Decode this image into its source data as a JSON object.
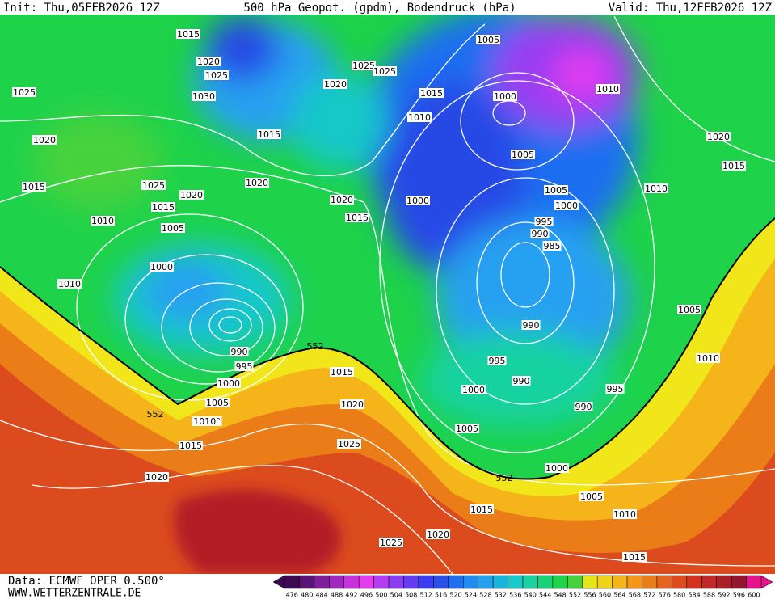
{
  "header": {
    "init": "Init: Thu,05FEB2026 12Z",
    "title": "500 hPa Geopot. (gpdm), Bodendruck (hPa)",
    "valid": "Valid: Thu,12FEB2026 12Z"
  },
  "footer": {
    "source": "Data: ECMWF OPER 0.500°",
    "site": "WWW.WETTERZENTRALE.DE"
  },
  "colorbar": {
    "labels": [
      476,
      480,
      484,
      488,
      492,
      496,
      500,
      504,
      508,
      512,
      516,
      520,
      524,
      528,
      532,
      536,
      540,
      544,
      548,
      552,
      556,
      560,
      564,
      568,
      572,
      576,
      580,
      584,
      588,
      592,
      596,
      600
    ]
  },
  "isobar_labels": [
    "1015",
    "1020",
    "1025",
    "1030",
    "1025",
    "1020",
    "1015",
    "1010",
    "1025",
    "1020",
    "1015",
    "1005",
    "1000",
    "1010",
    "1015",
    "1020",
    "1020",
    "1025",
    "1025",
    "1020",
    "1015",
    "1015",
    "1010",
    "1005",
    "1000",
    "1010",
    "1005",
    "1005",
    "1000",
    "1000",
    "995",
    "990",
    "985",
    "1020",
    "1015",
    "1010",
    "1005",
    "1010",
    "995",
    "990",
    "990",
    "995",
    "990",
    "1000",
    "1005",
    "1000",
    "552",
    "1005",
    "1010",
    "1015",
    "1015",
    "1020",
    "1025",
    "1025",
    "1020",
    "1015",
    "552",
    "990",
    "995",
    "1000",
    "1005",
    "552",
    "1010°",
    "1015",
    "1020"
  ]
}
